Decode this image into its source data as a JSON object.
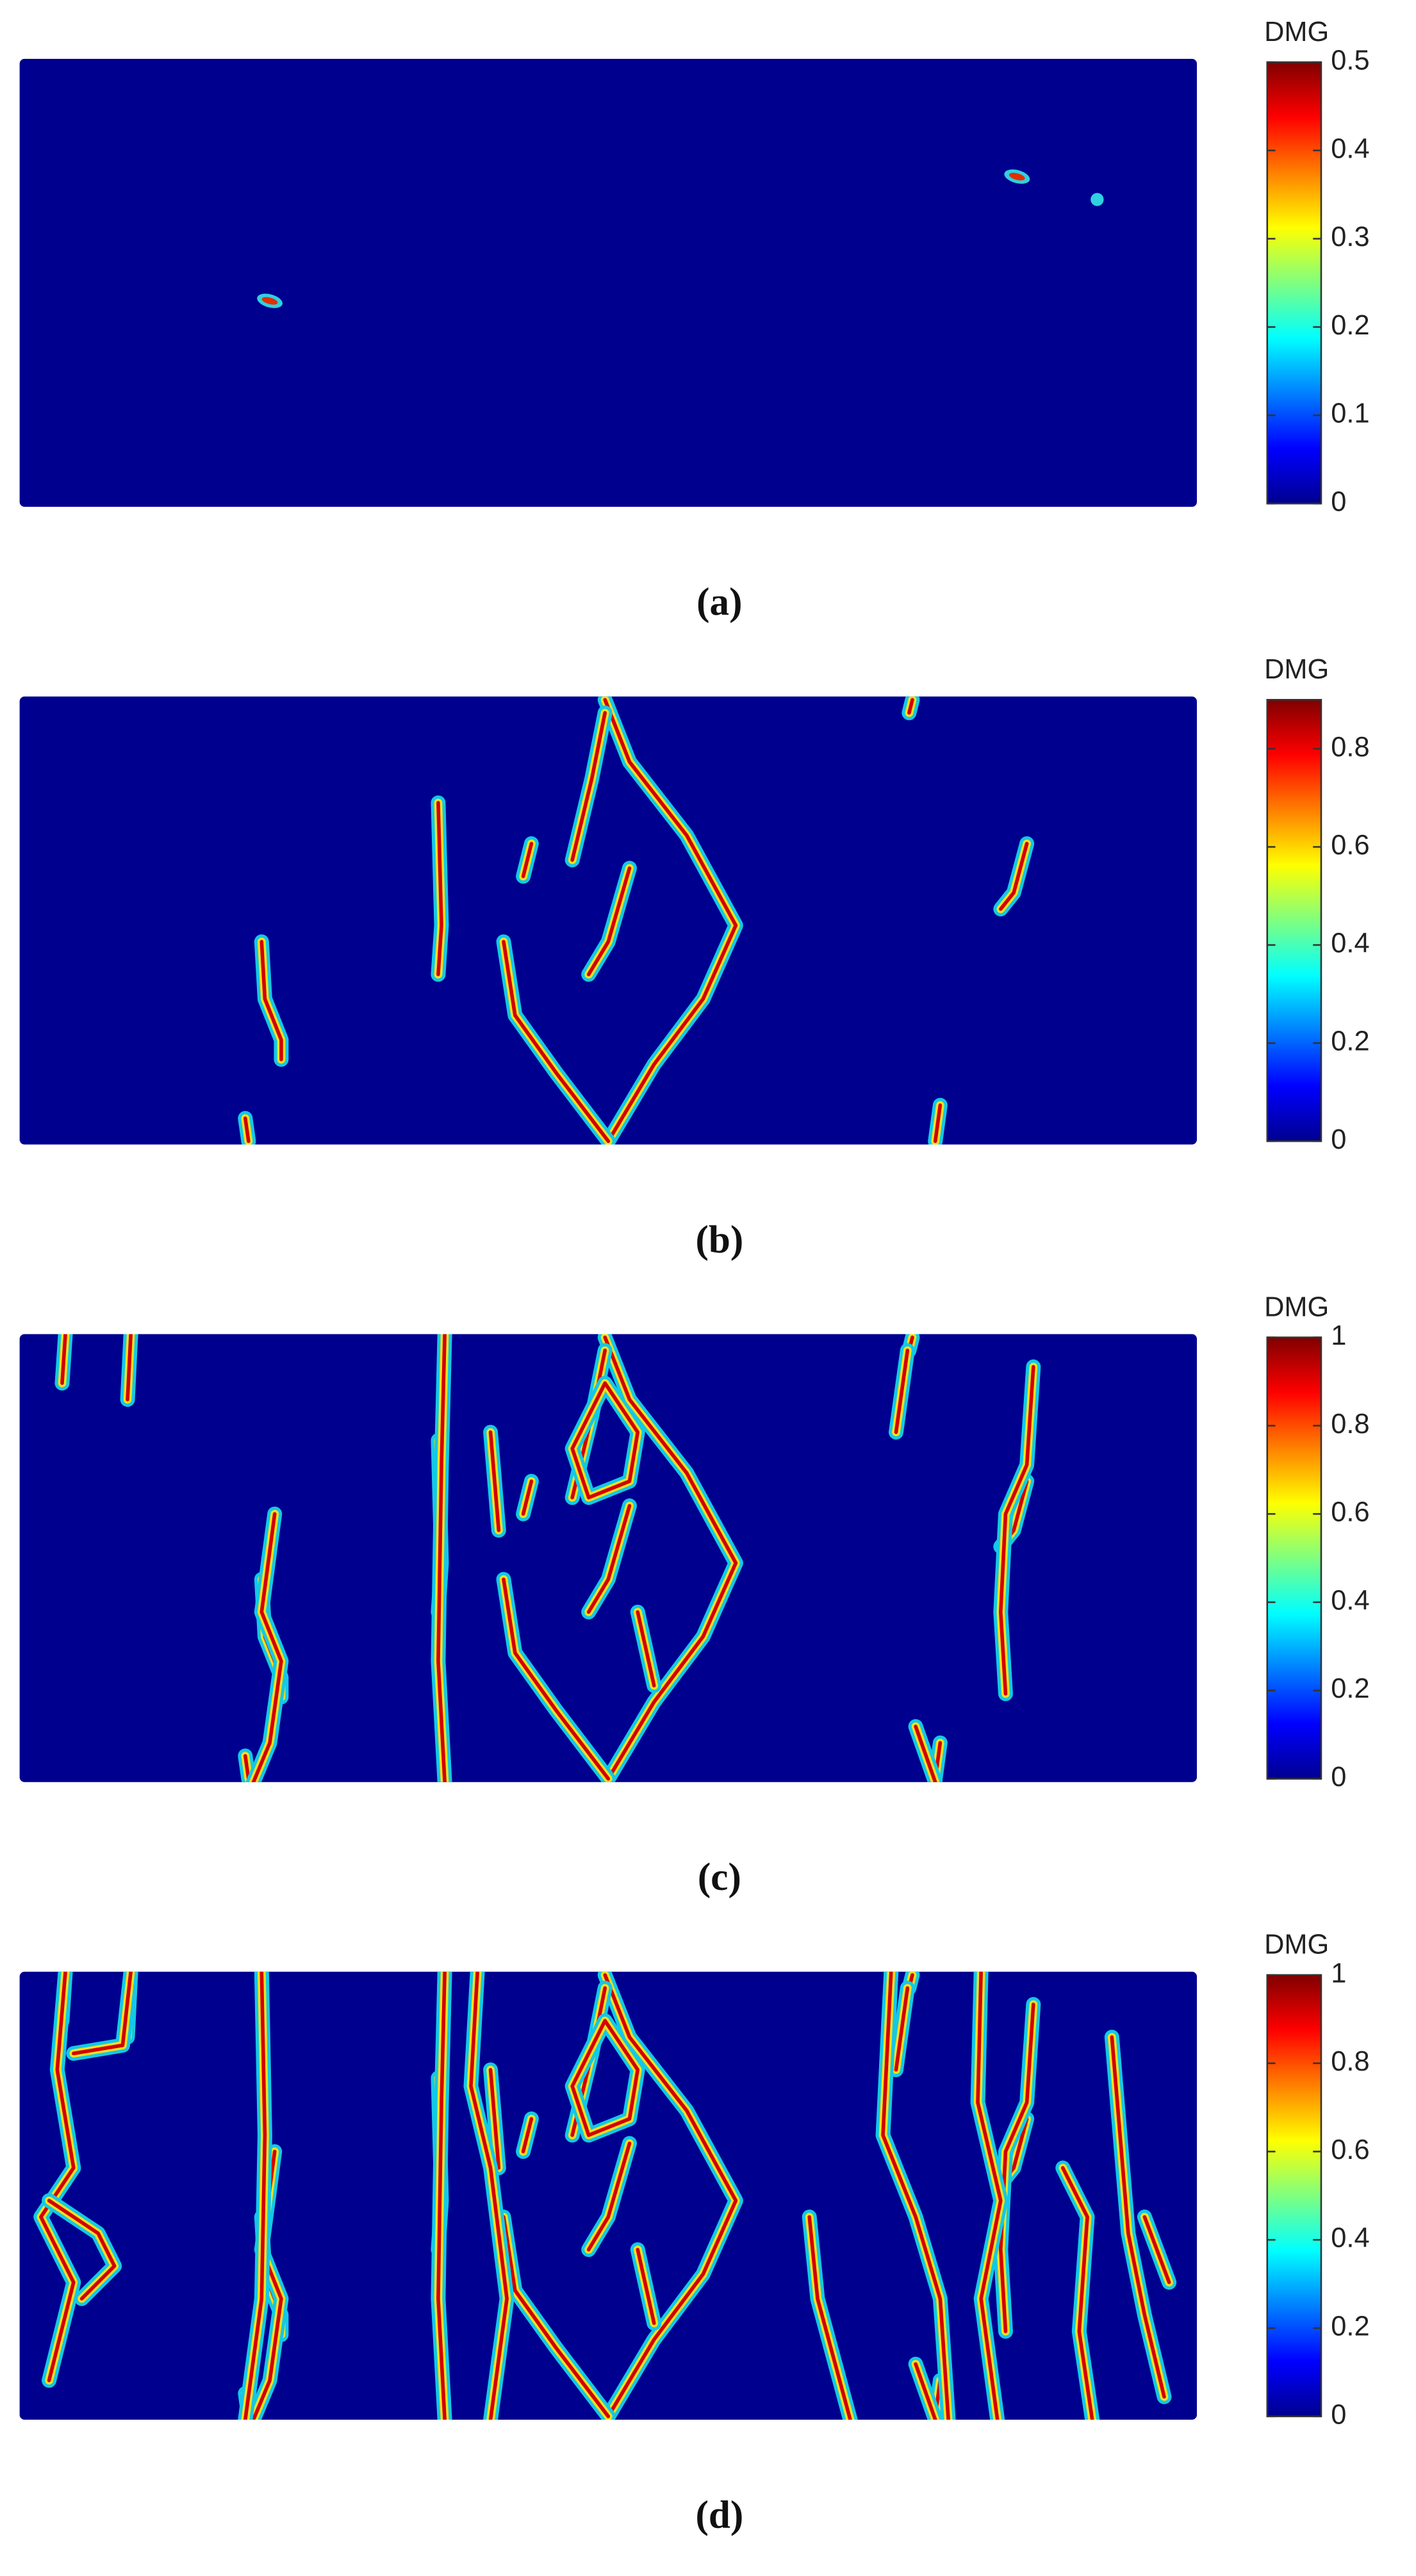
{
  "panels": [
    {
      "label": "(a)",
      "colorbar": {
        "title": "DMG",
        "lim": [
          0,
          0.5
        ],
        "ticks": [
          0,
          0.1,
          0.2,
          0.3,
          0.4,
          0.5
        ]
      }
    },
    {
      "label": "(b)",
      "colorbar": {
        "title": "DMG",
        "lim": [
          0,
          0.9
        ],
        "ticks": [
          0,
          0.2,
          0.4,
          0.6,
          0.8
        ]
      }
    },
    {
      "label": "(c)",
      "colorbar": {
        "title": "DMG",
        "lim": [
          0,
          1
        ],
        "ticks": [
          0,
          0.2,
          0.4,
          0.6,
          0.8,
          1
        ]
      }
    },
    {
      "label": "(d)",
      "colorbar": {
        "title": "DMG",
        "lim": [
          0,
          1
        ],
        "ticks": [
          0,
          0.2,
          0.4,
          0.6,
          0.8,
          1
        ]
      }
    }
  ]
}
